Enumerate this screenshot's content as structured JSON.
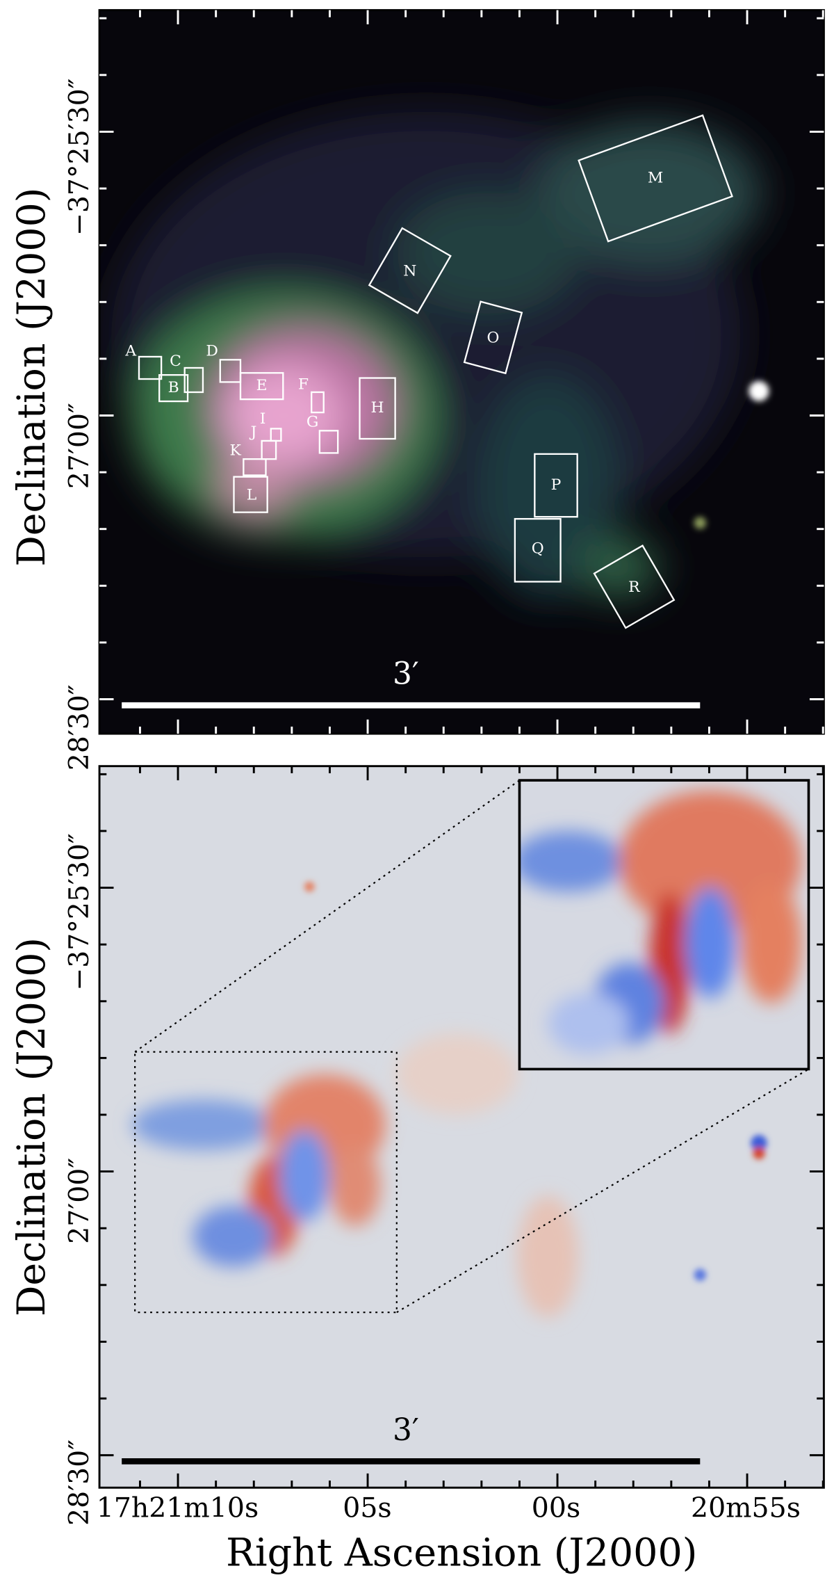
{
  "top_panel": {
    "y_tick_labels": [
      "−37°25′30″",
      "27′00″",
      "28′30″"
    ],
    "y_axis_label": "Declination (J2000)",
    "scale_bar_label": "3′",
    "regions": [
      "A",
      "B",
      "C",
      "D",
      "E",
      "F",
      "G",
      "H",
      "I",
      "J",
      "K",
      "L",
      "M",
      "N",
      "O",
      "P",
      "Q",
      "R"
    ]
  },
  "bottom_panel": {
    "y_tick_labels": [
      "−37°25′30″",
      "27′00″",
      "28′30″"
    ],
    "y_axis_label": "Declination (J2000)",
    "scale_bar_label": "3′",
    "x_tick_labels": [
      "17h21m10s",
      "05s",
      "00s",
      "20m55s"
    ],
    "x_axis_label": "Right Ascension (J2000)"
  }
}
